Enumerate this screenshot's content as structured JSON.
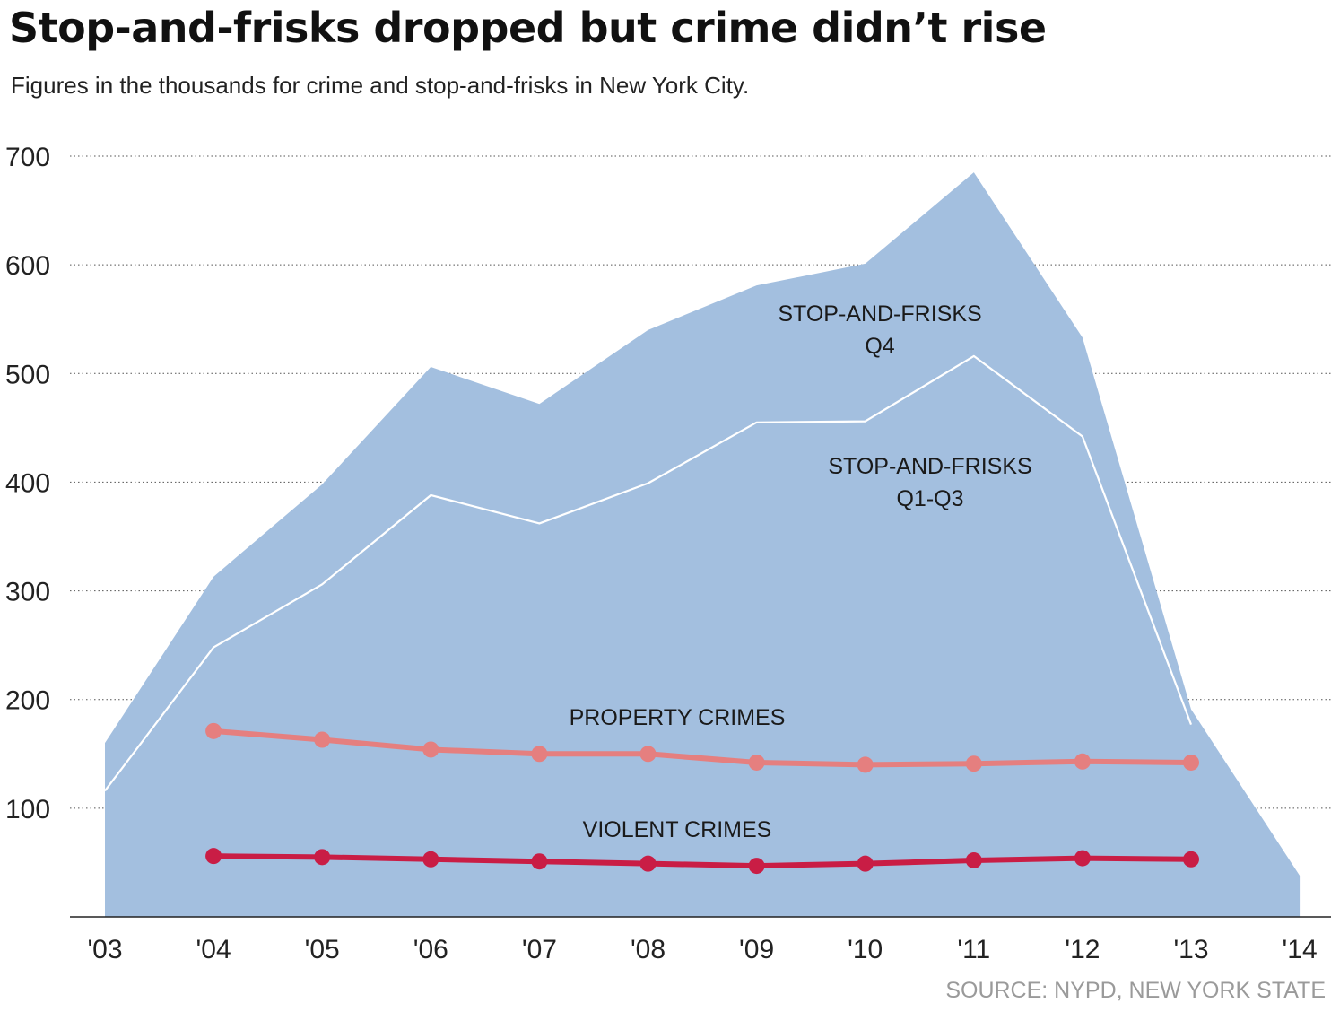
{
  "header": {
    "title": "Stop-and-frisks dropped but crime didn’t rise",
    "subtitle": "Figures in the thousands for crime and stop-and-frisks in New York City."
  },
  "source": "SOURCE: NYPD, NEW YORK STATE",
  "colors": {
    "area": "#a3bfdf",
    "q1q3_line": "#ffffff",
    "property": "#e57f7f",
    "violent": "#c91d45",
    "grid": "#555555"
  },
  "chart_data": {
    "type": "area",
    "title": "Stop-and-frisks dropped but crime didn’t rise",
    "xlabel": "",
    "ylabel": "",
    "categories": [
      "'03",
      "'04",
      "'05",
      "'06",
      "'07",
      "'08",
      "'09",
      "'10",
      "'11",
      "'12",
      "'13",
      "'14"
    ],
    "y_ticks": [
      100,
      200,
      300,
      400,
      500,
      600,
      700
    ],
    "ylim": [
      0,
      700
    ],
    "grid": true,
    "series": [
      {
        "name": "Stop-and-frisks total (Q1-Q4)",
        "kind": "area",
        "values": [
          160,
          313,
          398,
          506,
          472,
          540,
          581,
          601,
          685,
          533,
          191,
          38
        ]
      },
      {
        "name": "Stop-and-frisks Q1-Q3",
        "kind": "line",
        "values": [
          116,
          248,
          306,
          388,
          362,
          399,
          455,
          456,
          516,
          442,
          177,
          null
        ]
      },
      {
        "name": "Property crimes",
        "kind": "line-markers",
        "values": [
          null,
          171,
          163,
          154,
          150,
          150,
          142,
          140,
          141,
          143,
          142,
          null
        ]
      },
      {
        "name": "Violent crimes",
        "kind": "line-markers",
        "values": [
          null,
          56,
          55,
          53,
          51,
          49,
          47,
          49,
          52,
          54,
          53,
          null
        ]
      }
    ],
    "annotations": [
      {
        "id": "sf_q4",
        "lines": [
          "STOP-AND-FRISKS",
          "Q4"
        ]
      },
      {
        "id": "sf_q1q3",
        "lines": [
          "STOP-AND-FRISKS",
          "Q1-Q3"
        ]
      },
      {
        "id": "property",
        "lines": [
          "PROPERTY CRIMES"
        ]
      },
      {
        "id": "violent",
        "lines": [
          "VIOLENT CRIMES"
        ]
      }
    ]
  }
}
